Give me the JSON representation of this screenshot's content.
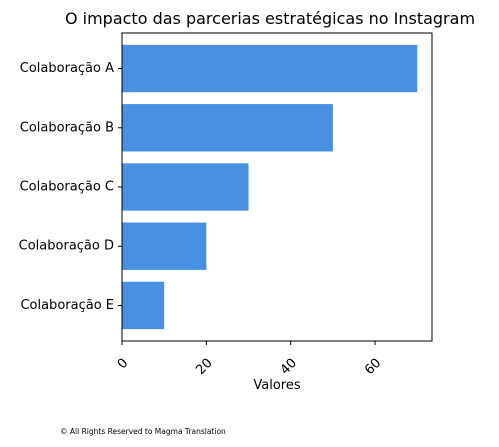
{
  "chart_data": {
    "type": "bar",
    "orientation": "horizontal",
    "title": "O impacto das parcerias estratégicas no Instagram",
    "xlabel": "Valores",
    "ylabel": "",
    "categories": [
      "Colaboração A",
      "Colaboração B",
      "Colaboração C",
      "Colaboração D",
      "Colaboração E"
    ],
    "values": [
      70,
      50,
      30,
      20,
      10
    ],
    "xlim": [
      0,
      73.5
    ],
    "xticks": [
      0,
      20,
      40,
      60
    ],
    "tick_label_rotation": "45 degrees",
    "bar_color": "#4a90e2",
    "grid": false,
    "legend": "none"
  },
  "footer": {
    "copyright": "© All Rights Reserved to Magma Translation"
  }
}
